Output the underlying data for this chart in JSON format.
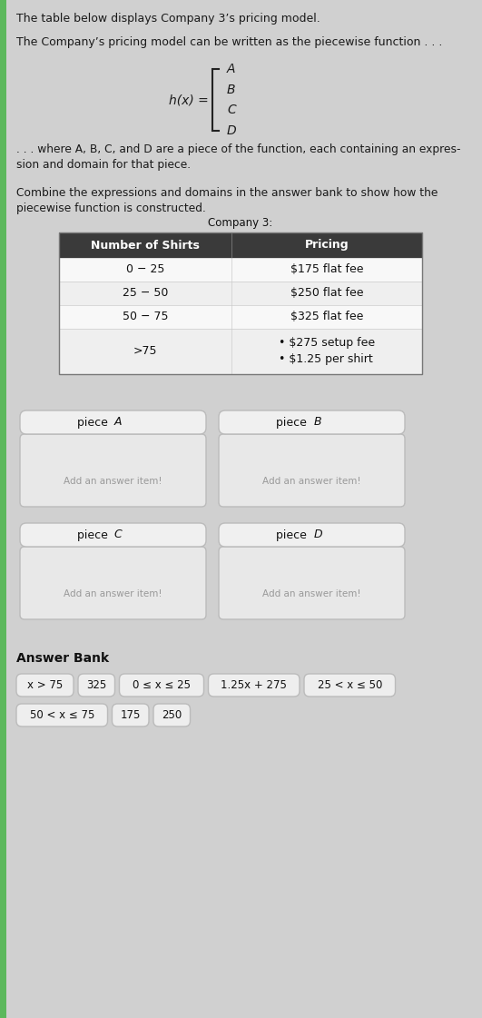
{
  "bg_color": "#d0d0d0",
  "left_bar_color": "#5cb85c",
  "title_text": "The table below displays Company 3’s pricing model.",
  "intro_text": "The Company’s pricing model can be written as the piecewise function . . .",
  "formula_label": "h(x) =",
  "piecewise_letters": [
    "A",
    "B",
    "C",
    "D"
  ],
  "where_text": ". . . where A, B, C, and D are a piece of the function, each containing an expres-\nsion and domain for that piece.",
  "combine_text": "Combine the expressions and domains in the answer bank to show how the\npiecewise function is constructed.",
  "table_title": "Company 3:",
  "table_headers": [
    "Number of Shirts",
    "Pricing"
  ],
  "table_rows": [
    [
      "0 − 25",
      "$175 flat fee"
    ],
    [
      "25 − 50",
      "$250 flat fee"
    ],
    [
      "50 − 75",
      "$325 flat fee"
    ],
    [
      ">75",
      "• $275 setup fee\n• $1.25 per shirt"
    ]
  ],
  "header_bg": "#3a3a3a",
  "header_fg": "#ffffff",
  "add_text": "Add an answer item!",
  "answer_bank_title": "Answer Bank",
  "answer_items_row1": [
    "x > 75",
    "325",
    "0 ≤ x ≤ 25",
    "1.25x + 275",
    "25 < x ≤ 50"
  ],
  "answer_items_row2": [
    "50 < x ≤ 75",
    "175",
    "250"
  ]
}
